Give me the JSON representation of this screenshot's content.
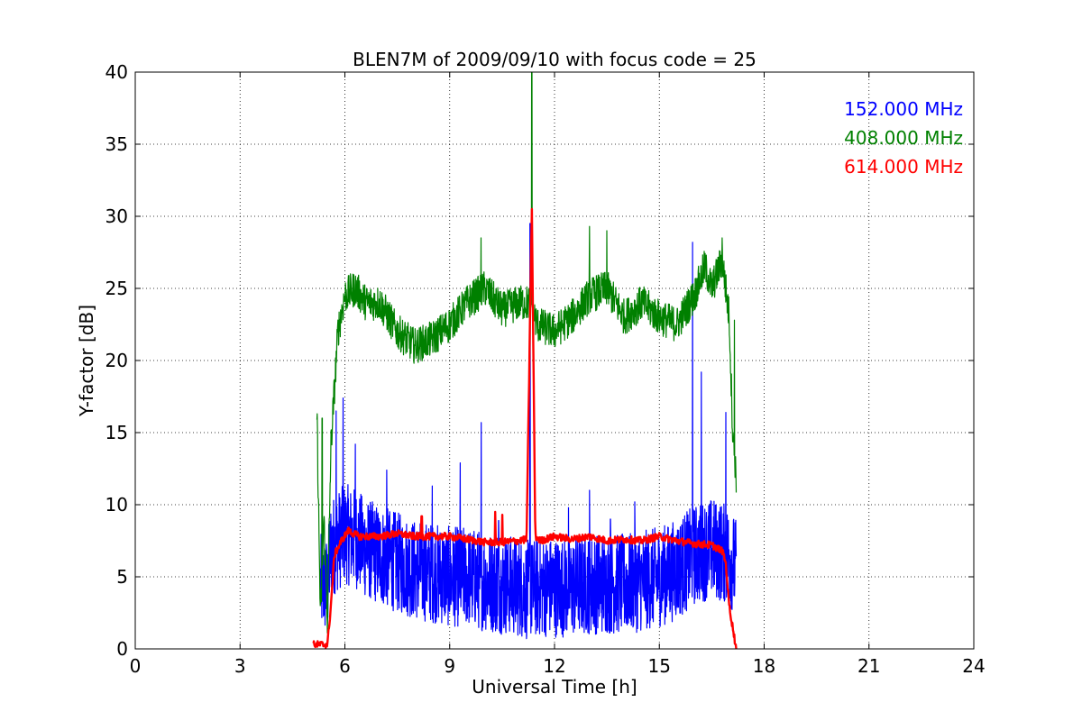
{
  "chart_data": {
    "type": "line",
    "title": "BLEN7M of 2009/09/10 with focus code = 25",
    "xlabel": "Universal Time [h]",
    "ylabel": "Y-factor [dB]",
    "xlim": [
      0,
      24
    ],
    "ylim": [
      0,
      40
    ],
    "xticks": [
      0,
      3,
      6,
      9,
      12,
      15,
      18,
      21,
      24
    ],
    "yticks": [
      0,
      5,
      10,
      15,
      20,
      25,
      30,
      35,
      40
    ],
    "grid": true,
    "legend_position": "top-right",
    "series": [
      {
        "name": "152.000 MHz",
        "color": "#0000ff",
        "x": [
          5.3,
          5.5,
          5.6,
          5.8,
          6.0,
          6.3,
          6.6,
          7.0,
          7.5,
          8.0,
          8.5,
          9.0,
          9.5,
          10.0,
          10.5,
          11.0,
          11.3,
          11.5,
          12.0,
          12.5,
          13.0,
          13.5,
          14.0,
          14.5,
          15.0,
          15.5,
          16.0,
          16.5,
          17.0,
          17.2
        ],
        "y": [
          1.0,
          0.8,
          3.5,
          4.0,
          4.5,
          4.2,
          3.5,
          3.0,
          2.5,
          2.0,
          1.8,
          1.5,
          1.5,
          1.2,
          1.0,
          0.8,
          0.5,
          0.8,
          0.8,
          0.8,
          1.0,
          1.0,
          1.0,
          1.2,
          1.5,
          2.0,
          3.0,
          3.5,
          3.0,
          2.0
        ],
        "spikes": [
          [
            5.75,
            16.5
          ],
          [
            5.95,
            17.4
          ],
          [
            6.3,
            14.2
          ],
          [
            7.2,
            12.4
          ],
          [
            8.5,
            11.3
          ],
          [
            9.3,
            12.9
          ],
          [
            9.9,
            15.7
          ],
          [
            10.4,
            8.9
          ],
          [
            11.3,
            29.5
          ],
          [
            12.4,
            9.8
          ],
          [
            13.0,
            11.0
          ],
          [
            13.6,
            9.0
          ],
          [
            14.3,
            10.2
          ],
          [
            15.95,
            28.2
          ],
          [
            16.2,
            19.2
          ],
          [
            16.9,
            16.4
          ]
        ],
        "noise_amplitude": 7.0
      },
      {
        "name": "408.000 MHz",
        "color": "#008000",
        "x": [
          5.2,
          5.3,
          5.4,
          5.5,
          5.6,
          5.8,
          6.0,
          6.3,
          6.6,
          7.0,
          7.5,
          8.0,
          8.5,
          9.0,
          9.5,
          10.0,
          10.5,
          11.0,
          11.3,
          11.5,
          12.0,
          12.5,
          13.0,
          13.5,
          14.0,
          14.5,
          15.0,
          15.5,
          16.0,
          16.3,
          16.5,
          16.8,
          17.0,
          17.1,
          17.2
        ],
        "y": [
          16.5,
          2.0,
          9.0,
          2.0,
          14.0,
          22.0,
          24.5,
          25.0,
          24.0,
          24.0,
          22.0,
          21.0,
          21.5,
          22.5,
          24.0,
          25.0,
          23.5,
          24.0,
          24.0,
          22.5,
          22.0,
          23.0,
          24.5,
          25.0,
          23.0,
          24.0,
          23.0,
          22.5,
          24.5,
          26.5,
          25.0,
          27.0,
          23.0,
          15.0,
          12.0
        ],
        "spikes": [
          [
            5.35,
            16.0
          ],
          [
            9.9,
            28.5
          ],
          [
            11.35,
            40.0
          ],
          [
            13.0,
            29.3
          ],
          [
            13.5,
            29.0
          ],
          [
            16.8,
            28.5
          ],
          [
            17.15,
            22.8
          ]
        ],
        "noise_amplitude": 2.5
      },
      {
        "name": "614.000 MHz",
        "color": "#ff0000",
        "x": [
          5.1,
          5.4,
          5.5,
          5.6,
          5.7,
          5.9,
          6.1,
          6.4,
          7.0,
          7.5,
          8.0,
          8.5,
          9.0,
          9.5,
          10.0,
          10.5,
          11.0,
          11.2,
          11.35,
          11.45,
          11.6,
          12.0,
          12.5,
          13.0,
          13.5,
          14.0,
          14.5,
          15.0,
          15.5,
          16.0,
          16.5,
          16.8,
          16.9,
          17.0,
          17.2
        ],
        "y": [
          0.3,
          0.3,
          0.3,
          3.0,
          6.5,
          7.5,
          8.2,
          7.8,
          7.8,
          8.0,
          7.8,
          7.8,
          7.8,
          7.6,
          7.4,
          7.4,
          7.5,
          7.6,
          30.8,
          7.8,
          7.5,
          7.8,
          7.6,
          7.8,
          7.5,
          7.6,
          7.5,
          7.8,
          7.5,
          7.3,
          7.2,
          6.8,
          6.0,
          3.0,
          0.0
        ],
        "spikes": [
          [
            8.2,
            9.2
          ],
          [
            10.3,
            9.5
          ],
          [
            10.5,
            9.3
          ]
        ],
        "noise_amplitude": 0.5
      }
    ]
  }
}
